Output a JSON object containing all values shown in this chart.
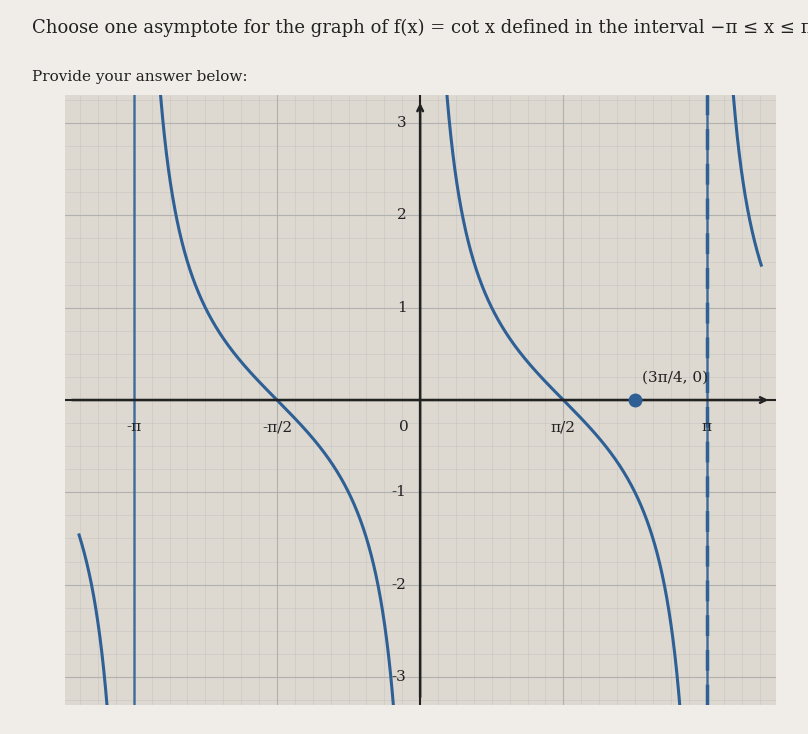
{
  "title_line1": "Choose one asymptote for the graph of f(x) = cot x defined in the interval −π ≤ x ≤ π.",
  "answer_label": "Provide your answer below:",
  "page_bg": "#f0ede8",
  "plot_bg": "#ddd8d0",
  "grid_color": "#bbbbbb",
  "axis_color": "#222222",
  "curve_color": "#2e6095",
  "dashed_x": 3.14159265358979,
  "point_x": 2.356194490192345,
  "point_y": 0,
  "point_label": "(3π/4, 0)",
  "xmin": -3.9,
  "xmax": 3.9,
  "ymin": -3.3,
  "ymax": 3.3,
  "yticks": [
    -3,
    -2,
    -1,
    1,
    2,
    3
  ],
  "xtick_positions": [
    -3.14159265,
    -1.5707963,
    1.5707963,
    3.14159265
  ],
  "xtick_labels": [
    "-π",
    "-π/2",
    "π/2",
    "π"
  ],
  "figsize": [
    8.08,
    7.34
  ],
  "dpi": 100,
  "curve_linewidth": 2.2,
  "dashed_linewidth": 2.5,
  "solid_asym_linewidth": 1.8,
  "font_size_title": 13,
  "font_size_answer": 11,
  "font_size_tick": 11,
  "font_size_point_label": 11,
  "text_color": "#222222",
  "grid_minor_spacing_x": 0.19634954,
  "grid_minor_spacing_y": 0.25
}
